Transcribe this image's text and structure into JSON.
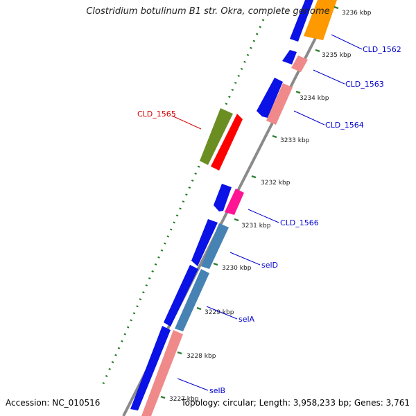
{
  "title": "Clostridium botulinum B1 str. Okra, complete genome",
  "footer": {
    "accession": "Accession: NC_010516",
    "topology": "Topology: circular; Length: 3,958,233 bp; Genes: 3,761"
  },
  "colors": {
    "backbone": "#7d7d7d",
    "gc_marks": "#1f7a1f",
    "tick": "#2e7d32",
    "label_forward": "#0000cc",
    "label_highlight": "#d40000",
    "cds": "#0a12e6",
    "gene_salmon": "#f08a8a",
    "gene_steel": "#4682b4",
    "gene_orange": "#ff9900",
    "gene_magenta": "#ff1493",
    "gene_olive": "#6b8e23",
    "gene_red": "#ff0000"
  },
  "ticks": [
    "3236 kbp",
    "3235 kbp",
    "3234 kbp",
    "3233 kbp",
    "3232 kbp",
    "3231 kbp",
    "3230 kbp",
    "3229 kbp",
    "3228 kbp",
    "3227 kbp"
  ],
  "gene_labels": {
    "cld_1562": "CLD_1562",
    "cld_1563": "CLD_1563",
    "cld_1564": "CLD_1564",
    "cld_1565": "CLD_1565",
    "cld_1566": "CLD_1566",
    "seld": "selD",
    "sela": "selA",
    "selb": "selB"
  }
}
